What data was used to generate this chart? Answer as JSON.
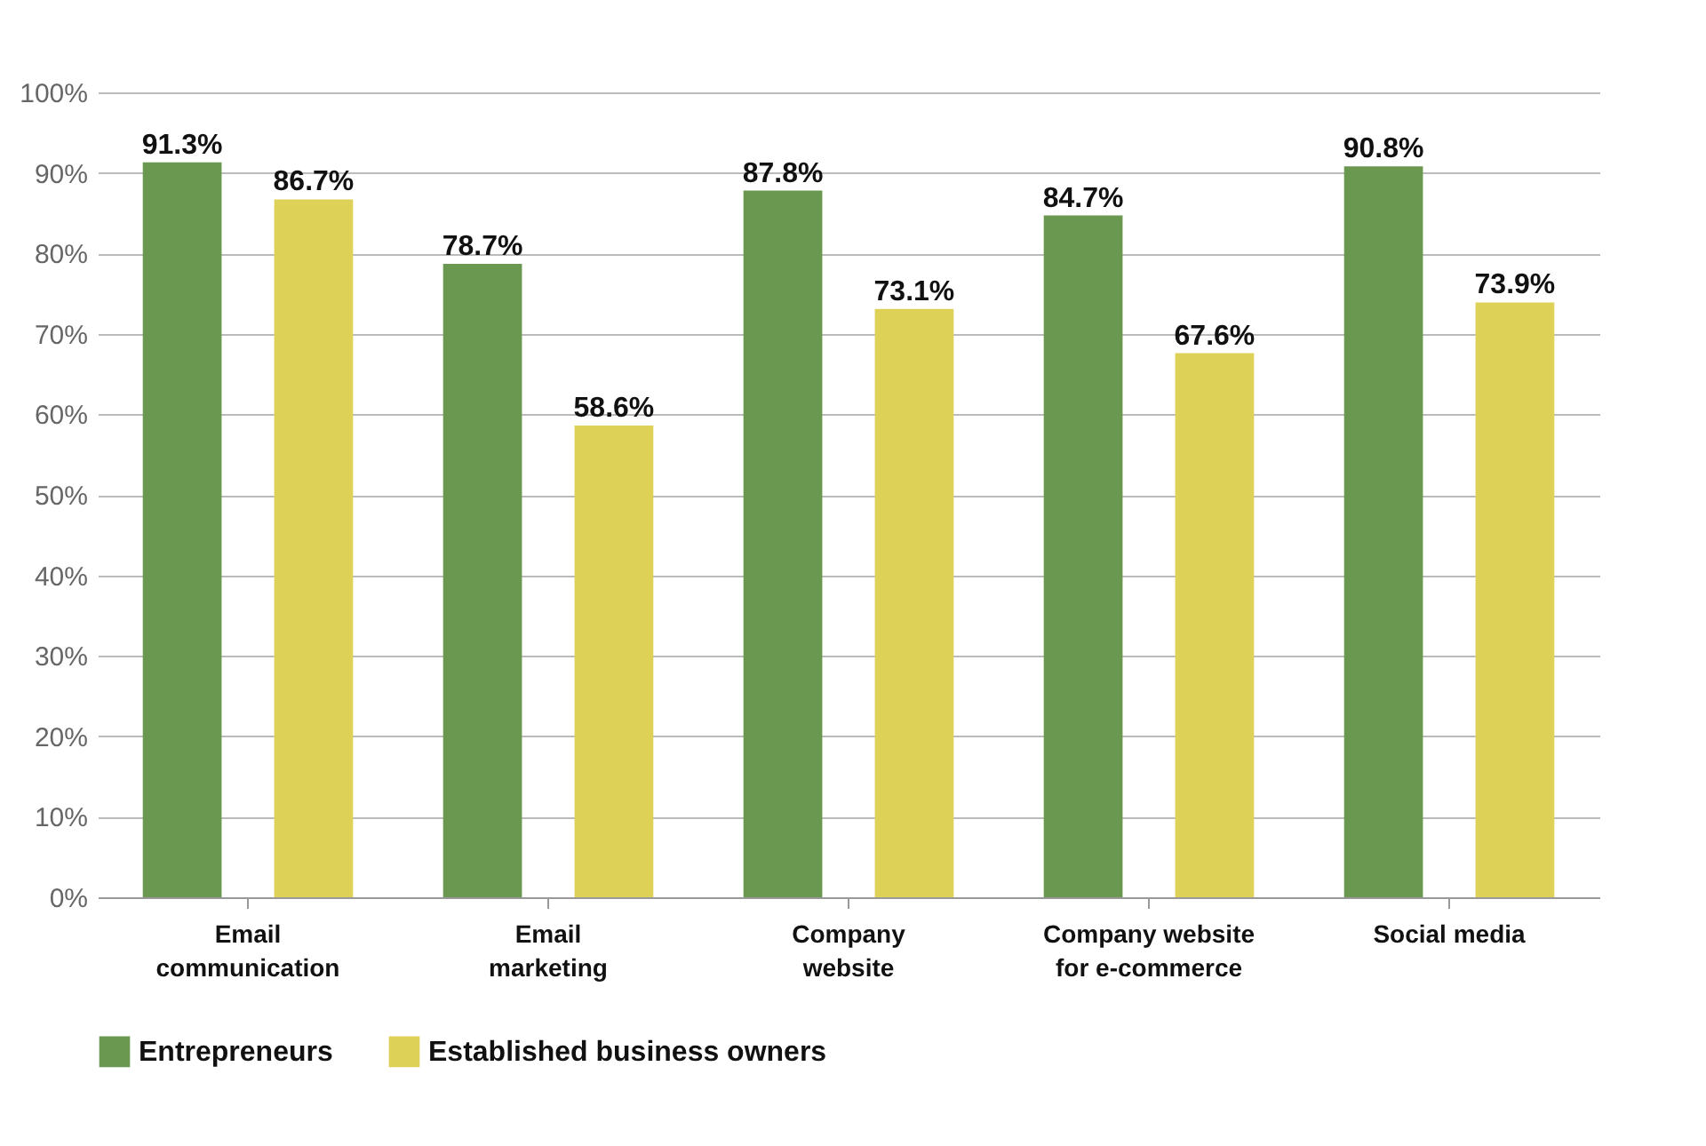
{
  "chart_data": {
    "type": "bar",
    "categories": [
      "Email\ncommunication",
      "Email\nmarketing",
      "Company\nwebsite",
      "Company website\nfor e-commerce",
      "Social media"
    ],
    "series": [
      {
        "name": "Entrepreneurs",
        "color": "#6a9850",
        "values": [
          91.3,
          78.7,
          87.8,
          84.7,
          90.8
        ],
        "value_labels": [
          "91.3%",
          "78.7%",
          "87.8%",
          "84.7%",
          "90.8%"
        ]
      },
      {
        "name": "Established business owners",
        "color": "#ddd157",
        "values": [
          86.7,
          58.6,
          73.1,
          67.6,
          73.9
        ],
        "value_labels": [
          "86.7%",
          "58.6%",
          "73.1%",
          "67.6%",
          "73.9%"
        ]
      }
    ],
    "ylim": [
      0,
      100
    ],
    "yticks": [
      {
        "value": 0,
        "label": "0%"
      },
      {
        "value": 10,
        "label": "10%"
      },
      {
        "value": 20,
        "label": "20%"
      },
      {
        "value": 30,
        "label": "30%"
      },
      {
        "value": 40,
        "label": "40%"
      },
      {
        "value": 50,
        "label": "50%"
      },
      {
        "value": 60,
        "label": "60%"
      },
      {
        "value": 70,
        "label": "70%"
      },
      {
        "value": 80,
        "label": "80%"
      },
      {
        "value": 90,
        "label": "90%"
      },
      {
        "value": 100,
        "label": "100%"
      }
    ],
    "grid": "y",
    "legend": "bottom"
  }
}
